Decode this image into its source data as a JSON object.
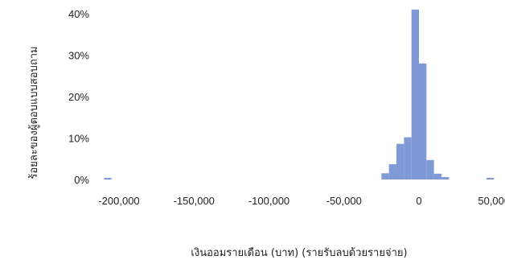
{
  "chart_data": {
    "type": "bar",
    "title": "",
    "xlabel": "เงินออมรายเดือน (บาท) (รายรับลบด้วยรายจ่าย)",
    "ylabel": "ร้อยละของผู้ตอบแบบสอบถาม",
    "x_tick_labels": [
      "-200,000",
      "-150,000",
      "-100,000",
      "-50,000",
      "0",
      "50,000"
    ],
    "y_tick_labels": [
      "0%",
      "10%",
      "20%",
      "30%",
      "40%"
    ],
    "x_ticks": [
      -200000,
      -150000,
      -100000,
      -50000,
      0,
      50000
    ],
    "y_ticks": [
      0,
      10,
      20,
      30,
      40
    ],
    "xlim": [
      -230000,
      57000
    ],
    "ylim": [
      0,
      40
    ],
    "bar_color": "#7f9ad6",
    "grid": false,
    "legend": "none",
    "bins": [
      {
        "x0": -210000,
        "x1": -205000,
        "value": 0.4
      },
      {
        "x0": -25000,
        "x1": -20000,
        "value": 1.5
      },
      {
        "x0": -20000,
        "x1": -15000,
        "value": 3.7
      },
      {
        "x0": -15000,
        "x1": -10000,
        "value": 8.6
      },
      {
        "x0": -10000,
        "x1": -5000,
        "value": 10.2
      },
      {
        "x0": -5000,
        "x1": 0,
        "value": 41.0
      },
      {
        "x0": 0,
        "x1": 5000,
        "value": 28.0
      },
      {
        "x0": 5000,
        "x1": 10000,
        "value": 4.7
      },
      {
        "x0": 10000,
        "x1": 15000,
        "value": 1.4
      },
      {
        "x0": 15000,
        "x1": 20000,
        "value": 0.6
      },
      {
        "x0": 45000,
        "x1": 50000,
        "value": 0.4
      }
    ]
  }
}
